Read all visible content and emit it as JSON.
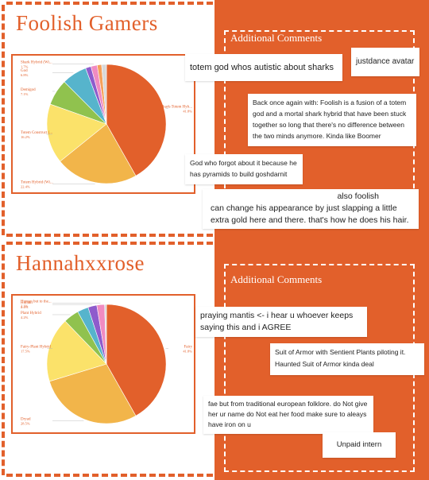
{
  "colors": {
    "accent": "#e2602b",
    "white": "#ffffff"
  },
  "panels": [
    {
      "title": "Foolish Gamers",
      "comments_header": "Additional Comments",
      "notes": [
        "totem god whos autistic about sharks",
        "justdance avatar",
        "Back once again with: Foolish is a fusion of a totem god and a mortal shark hybrid that have been stuck together so long that there's no difference between the two minds anymore. Kinda like Boomer",
        "God who forgot about it because he has pyramids to build goshdarnit",
        "also foolish",
        "can change his appearance by just slapping a little extra gold here and there. that's how he does his hair."
      ]
    },
    {
      "title": "Hannahxxrose",
      "comments_header": "Additional Comments",
      "notes": [
        "praying mantis <- i hear u whoever keeps saying this and i AGREE",
        "Suit of Armor with Sentient Plants piloting it. Haunted Suit of Armor kinda deal",
        "fae but from traditional european folklore. do Not give her ur name do Not eat her food make sure to aleays have iron on u",
        "Unpaid intern"
      ]
    }
  ],
  "chart_data": [
    {
      "type": "pie",
      "title": "",
      "slices": [
        {
          "label": "Shark-Totem Hyb...",
          "pct_label": "41.8%",
          "value": 41.8,
          "color": "#e2602b"
        },
        {
          "label": "Totem Hybrid (Wi...",
          "pct_label": "22.4%",
          "value": 22.4,
          "color": "#f2b54a"
        },
        {
          "label": "Totem Construct (...",
          "pct_label": "16.2%",
          "value": 16.2,
          "color": "#fbe26a"
        },
        {
          "label": "Demigod",
          "pct_label": "7.1%",
          "value": 7.1,
          "color": "#90c24e"
        },
        {
          "label": "God",
          "pct_label": "6.8%",
          "value": 6.8,
          "color": "#56b4cc"
        },
        {
          "label": "",
          "pct_label": "",
          "value": 1.5,
          "color": "#8e5bcc"
        },
        {
          "label": "Shark Hybrid (Wi...",
          "pct_label": "1.7%",
          "value": 1.7,
          "color": "#f08bc1"
        },
        {
          "label": "",
          "pct_label": "",
          "value": 1.2,
          "color": "#f5a05a"
        },
        {
          "label": "",
          "pct_label": "",
          "value": 1.3,
          "color": "#d8d8d8"
        }
      ]
    },
    {
      "type": "pie",
      "title": "",
      "slices": [
        {
          "label": "Fairy",
          "pct_label": "41.8%",
          "value": 41.8,
          "color": "#e2602b"
        },
        {
          "label": "Dryad",
          "pct_label": "28.5%",
          "value": 28.5,
          "color": "#f2b54a"
        },
        {
          "label": "Fairy-Plant Hybrid",
          "pct_label": "17.5%",
          "value": 17.5,
          "color": "#fbe26a"
        },
        {
          "label": "Plant Hybrid",
          "pct_label": "4.2%",
          "value": 4.2,
          "color": "#90c24e"
        },
        {
          "label": "",
          "pct_label": "",
          "value": 3.0,
          "color": "#56b4cc"
        },
        {
          "label": "Human",
          "pct_label": "2.4%",
          "value": 2.4,
          "color": "#8e5bcc"
        },
        {
          "label": "Human but to the...",
          "pct_label": "2.1%",
          "value": 2.1,
          "color": "#f08bc1"
        },
        {
          "label": "",
          "pct_label": "",
          "value": 0.5,
          "color": "#d8d8d8"
        }
      ]
    }
  ]
}
